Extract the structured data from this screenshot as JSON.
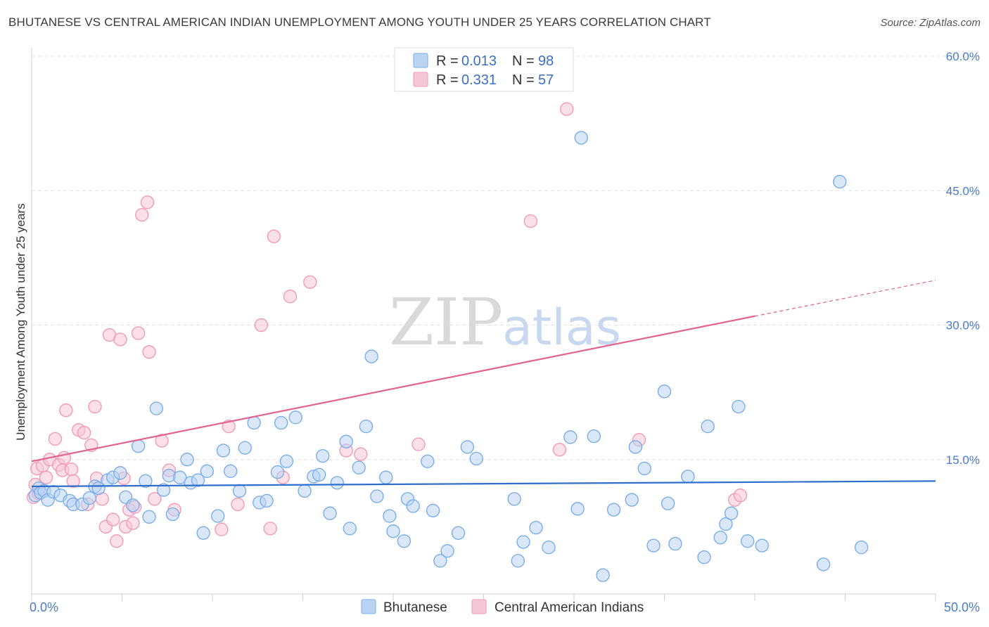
{
  "title": "BHUTANESE VS CENTRAL AMERICAN INDIAN UNEMPLOYMENT AMONG YOUTH UNDER 25 YEARS CORRELATION CHART",
  "source": "Source: ZipAtlas.com",
  "colors": {
    "blue": "#7aaee8",
    "blue_fill": "#b9d3f2",
    "pink": "#f29ab8",
    "pink_fill": "#f7c6d7",
    "blue_line": "#2f6fcb",
    "pink_line": "#e0648f"
  },
  "legend": {
    "rows": [
      {
        "r_label": "R = ",
        "r_value": "0.013",
        "n_label": "N = ",
        "n_value": "98"
      },
      {
        "r_label": "R = ",
        "r_value": "0.331",
        "n_label": "N = ",
        "n_value": "57"
      }
    ]
  },
  "bottom_legend": [
    "Bhutanese",
    "Central American Indians"
  ],
  "watermark": {
    "zip": "ZIP",
    "atlas": "atlas"
  },
  "chart_data": {
    "type": "scatter",
    "xlabel": "",
    "ylabel": "Unemployment Among Youth under 25 years",
    "xlim": [
      0,
      50
    ],
    "ylim": [
      0,
      60
    ],
    "x_tick_labels": [
      "0.0%",
      "50.0%"
    ],
    "y_tick_labels": [
      "15.0%",
      "30.0%",
      "45.0%",
      "60.0%"
    ],
    "y_ticks": [
      15,
      30,
      45,
      60
    ],
    "grid": true,
    "series": [
      {
        "name": "Bhutanese",
        "trend": [
          [
            0,
            12.0
          ],
          [
            50,
            12.6
          ]
        ],
        "points": [
          [
            0.2,
            11.0
          ],
          [
            0.4,
            11.8
          ],
          [
            0.5,
            11.3
          ],
          [
            0.7,
            11.5
          ],
          [
            0.9,
            10.5
          ],
          [
            1.2,
            11.4
          ],
          [
            1.6,
            11.0
          ],
          [
            2.1,
            10.4
          ],
          [
            2.3,
            10.0
          ],
          [
            2.8,
            10.0
          ],
          [
            3.2,
            10.7
          ],
          [
            3.5,
            12.0
          ],
          [
            3.7,
            11.8
          ],
          [
            4.2,
            12.7
          ],
          [
            4.5,
            13.0
          ],
          [
            4.9,
            13.5
          ],
          [
            5.2,
            10.8
          ],
          [
            5.6,
            9.9
          ],
          [
            5.9,
            16.5
          ],
          [
            6.3,
            12.6
          ],
          [
            6.5,
            8.6
          ],
          [
            6.9,
            20.7
          ],
          [
            7.3,
            11.6
          ],
          [
            7.6,
            13.2
          ],
          [
            7.8,
            8.9
          ],
          [
            8.2,
            13.0
          ],
          [
            8.6,
            15.0
          ],
          [
            8.8,
            12.4
          ],
          [
            9.2,
            12.7
          ],
          [
            9.5,
            6.8
          ],
          [
            9.7,
            13.7
          ],
          [
            10.3,
            8.7
          ],
          [
            10.6,
            16.0
          ],
          [
            11.0,
            13.7
          ],
          [
            11.5,
            11.5
          ],
          [
            11.8,
            16.3
          ],
          [
            12.3,
            19.1
          ],
          [
            12.6,
            10.2
          ],
          [
            13.0,
            10.4
          ],
          [
            13.6,
            13.6
          ],
          [
            13.8,
            19.1
          ],
          [
            14.1,
            14.8
          ],
          [
            14.6,
            19.7
          ],
          [
            15.1,
            11.5
          ],
          [
            15.6,
            13.1
          ],
          [
            15.9,
            13.3
          ],
          [
            16.1,
            15.4
          ],
          [
            16.5,
            9.0
          ],
          [
            16.9,
            12.4
          ],
          [
            17.4,
            17.0
          ],
          [
            17.6,
            7.3
          ],
          [
            18.1,
            14.1
          ],
          [
            18.5,
            18.7
          ],
          [
            18.8,
            26.5
          ],
          [
            19.1,
            10.9
          ],
          [
            19.6,
            13.0
          ],
          [
            19.8,
            8.7
          ],
          [
            20.0,
            7.0
          ],
          [
            20.6,
            5.9
          ],
          [
            20.8,
            10.6
          ],
          [
            21.1,
            9.8
          ],
          [
            21.9,
            14.8
          ],
          [
            22.2,
            9.3
          ],
          [
            22.6,
            3.7
          ],
          [
            23.0,
            4.8
          ],
          [
            23.6,
            6.8
          ],
          [
            24.1,
            16.4
          ],
          [
            24.6,
            15.1
          ],
          [
            26.7,
            10.6
          ],
          [
            26.9,
            3.7
          ],
          [
            27.2,
            5.8
          ],
          [
            27.9,
            7.4
          ],
          [
            28.6,
            5.2
          ],
          [
            29.8,
            17.5
          ],
          [
            30.2,
            9.5
          ],
          [
            30.4,
            50.9
          ],
          [
            31.1,
            17.6
          ],
          [
            31.6,
            2.1
          ],
          [
            32.2,
            9.4
          ],
          [
            33.2,
            10.5
          ],
          [
            33.4,
            16.4
          ],
          [
            33.9,
            14.0
          ],
          [
            34.4,
            5.4
          ],
          [
            35.0,
            22.6
          ],
          [
            35.2,
            10.1
          ],
          [
            35.6,
            5.6
          ],
          [
            36.3,
            13.1
          ],
          [
            37.2,
            4.1
          ],
          [
            37.4,
            18.7
          ],
          [
            38.1,
            6.3
          ],
          [
            38.4,
            7.8
          ],
          [
            38.7,
            9.0
          ],
          [
            39.1,
            20.9
          ],
          [
            39.6,
            5.9
          ],
          [
            40.4,
            5.4
          ],
          [
            43.8,
            3.3
          ],
          [
            44.7,
            46.0
          ],
          [
            45.9,
            5.2
          ]
        ]
      },
      {
        "name": "Central American Indians",
        "trend": [
          [
            0,
            14.8
          ],
          [
            40,
            31.0
          ]
        ],
        "trend_dashed": [
          [
            40,
            31.0
          ],
          [
            50,
            35.0
          ]
        ],
        "points": [
          [
            0.1,
            10.8
          ],
          [
            0.2,
            12.2
          ],
          [
            0.3,
            14.0
          ],
          [
            0.4,
            11.2
          ],
          [
            0.6,
            14.3
          ],
          [
            0.8,
            13.0
          ],
          [
            1.0,
            15.0
          ],
          [
            1.3,
            17.3
          ],
          [
            1.5,
            14.4
          ],
          [
            1.7,
            13.8
          ],
          [
            1.8,
            15.2
          ],
          [
            1.9,
            20.5
          ],
          [
            2.2,
            13.9
          ],
          [
            2.3,
            12.6
          ],
          [
            2.6,
            18.3
          ],
          [
            2.9,
            18.0
          ],
          [
            3.1,
            10.0
          ],
          [
            3.3,
            16.6
          ],
          [
            3.5,
            20.9
          ],
          [
            3.6,
            12.9
          ],
          [
            3.9,
            10.6
          ],
          [
            4.1,
            7.5
          ],
          [
            4.3,
            28.9
          ],
          [
            4.5,
            8.3
          ],
          [
            4.7,
            5.9
          ],
          [
            4.9,
            28.4
          ],
          [
            5.1,
            12.9
          ],
          [
            5.2,
            7.5
          ],
          [
            5.4,
            9.4
          ],
          [
            5.6,
            7.9
          ],
          [
            5.7,
            9.7
          ],
          [
            5.9,
            29.1
          ],
          [
            6.1,
            42.3
          ],
          [
            6.4,
            43.7
          ],
          [
            6.5,
            27.0
          ],
          [
            6.8,
            10.6
          ],
          [
            7.2,
            17.1
          ],
          [
            7.6,
            13.8
          ],
          [
            7.9,
            9.4
          ],
          [
            10.5,
            7.2
          ],
          [
            10.9,
            18.7
          ],
          [
            11.4,
            10.0
          ],
          [
            12.7,
            30.0
          ],
          [
            13.2,
            7.3
          ],
          [
            13.4,
            39.9
          ],
          [
            13.9,
            13.0
          ],
          [
            14.3,
            33.2
          ],
          [
            15.4,
            34.8
          ],
          [
            17.4,
            16.0
          ],
          [
            18.2,
            15.6
          ],
          [
            21.4,
            16.7
          ],
          [
            27.6,
            41.6
          ],
          [
            29.2,
            16.1
          ],
          [
            29.6,
            54.1
          ],
          [
            33.6,
            17.2
          ],
          [
            38.9,
            10.5
          ],
          [
            39.2,
            11.0
          ]
        ]
      }
    ]
  }
}
